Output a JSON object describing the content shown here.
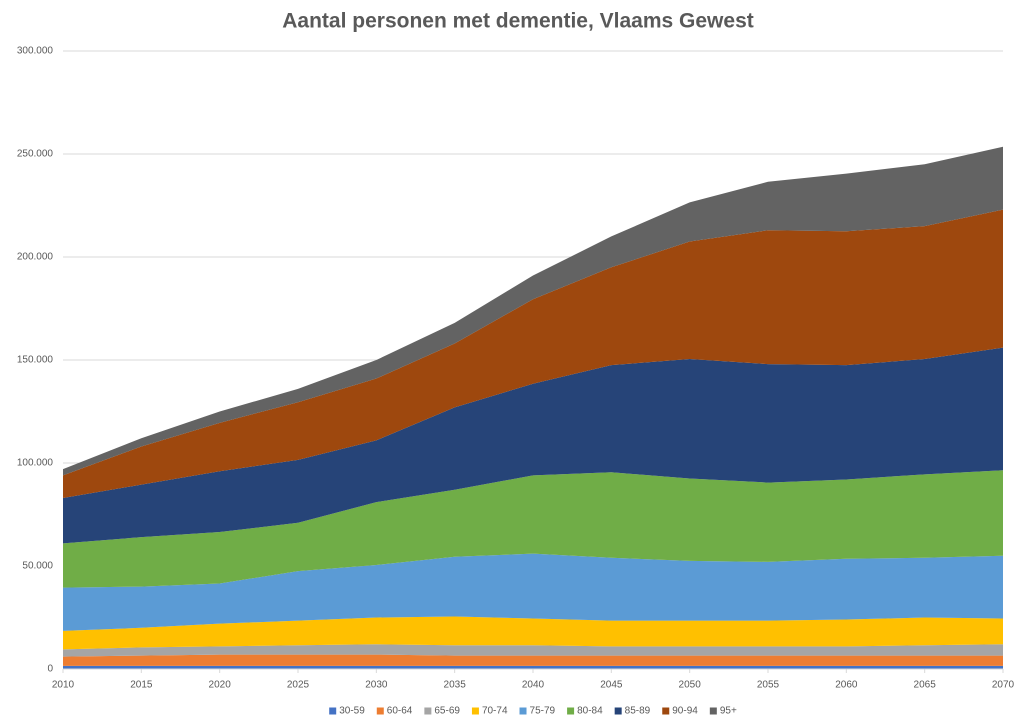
{
  "chart_data": {
    "type": "stacked_area",
    "title": "Aantal  personen met dementie, Vlaams Gewest",
    "x": [
      2010,
      2015,
      2020,
      2025,
      2030,
      2035,
      2040,
      2045,
      2050,
      2055,
      2060,
      2065,
      2070
    ],
    "xlim": [
      2010,
      2070
    ],
    "xticks": [
      2010,
      2015,
      2020,
      2025,
      2030,
      2035,
      2040,
      2045,
      2050,
      2055,
      2060,
      2065,
      2070
    ],
    "ylim": [
      0,
      300000
    ],
    "yticks": [
      0,
      {
        "value": 50000,
        "label": "50.000"
      },
      {
        "value": 100000,
        "label": "100.000"
      },
      {
        "value": 150000,
        "label": "150.000"
      },
      {
        "value": 200000,
        "label": "200.000"
      },
      {
        "value": 250000,
        "label": "250.000"
      },
      {
        "value": 300000,
        "label": "300.000"
      }
    ],
    "grid": true,
    "legend": "bottom",
    "series": [
      {
        "name": "30-59",
        "color": "#4472c4",
        "values": [
          1500,
          1500,
          1500,
          1500,
          1500,
          1500,
          1500,
          1500,
          1500,
          1500,
          1500,
          1500,
          1500
        ]
      },
      {
        "name": "60-64",
        "color": "#ed7d31",
        "values": [
          4500,
          5000,
          5500,
          5500,
          5500,
          5000,
          5000,
          5000,
          5000,
          5000,
          5000,
          5000,
          5000
        ]
      },
      {
        "name": "65-69",
        "color": "#a5a5a5",
        "values": [
          3500,
          4000,
          4000,
          4500,
          5000,
          5000,
          5000,
          4500,
          4500,
          4500,
          4500,
          5000,
          5500
        ]
      },
      {
        "name": "70-74",
        "color": "#ffc000",
        "values": [
          9000,
          9500,
          11000,
          12000,
          13000,
          14000,
          13000,
          12500,
          12500,
          12500,
          13000,
          13500,
          12500
        ]
      },
      {
        "name": "75-79",
        "color": "#5b9bd5",
        "values": [
          21000,
          20000,
          19500,
          24000,
          25500,
          29000,
          31500,
          30500,
          29000,
          28500,
          29500,
          29000,
          30500
        ]
      },
      {
        "name": "80-84",
        "color": "#70ad47",
        "values": [
          21500,
          24000,
          25000,
          23500,
          30500,
          32500,
          38000,
          41500,
          40000,
          38500,
          38500,
          40500,
          41500
        ]
      },
      {
        "name": "85-89",
        "color": "#264478",
        "values": [
          22000,
          25500,
          29500,
          30500,
          30000,
          40000,
          44500,
          52000,
          58000,
          57500,
          55500,
          56000,
          59500
        ]
      },
      {
        "name": "90-94",
        "color": "#9e480e",
        "values": [
          11000,
          18500,
          23500,
          28000,
          30000,
          31000,
          41000,
          47500,
          57000,
          65000,
          65000,
          64500,
          67000
        ]
      },
      {
        "name": "95+",
        "color": "#636363",
        "values": [
          3000,
          4000,
          5500,
          6500,
          9000,
          10000,
          11500,
          15000,
          19000,
          23500,
          28000,
          30000,
          30500
        ]
      }
    ]
  }
}
